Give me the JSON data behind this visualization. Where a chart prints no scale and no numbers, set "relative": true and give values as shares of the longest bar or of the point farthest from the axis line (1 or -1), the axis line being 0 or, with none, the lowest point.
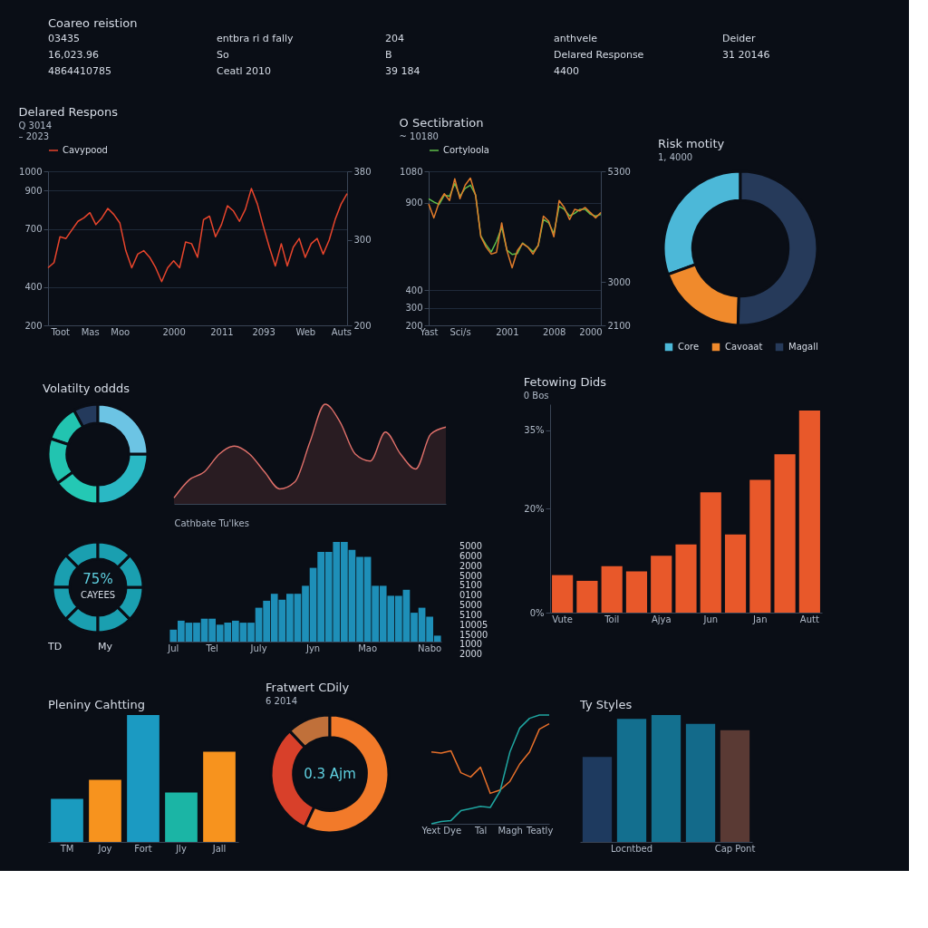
{
  "chart_data": [
    {
      "type": "other",
      "title": "Coareo reistion",
      "annotations": [
        "03435",
        "entbra ri d fally",
        "204",
        "anthvele",
        "Deider",
        "16,023.96",
        "So",
        "B",
        "Delared Response",
        "31 20146",
        "4864410785",
        "Ceatl 2010",
        "39 184",
        "4400"
      ]
    },
    {
      "type": "line",
      "title": "Delared Respons",
      "subtitle": "Q 3014",
      "annotations": [
        "– 2023"
      ],
      "legend": "top",
      "grid": "y",
      "categories": [
        null,
        null,
        "Toot",
        null,
        null,
        null,
        null,
        "Mas",
        null,
        null,
        null,
        null,
        "Moo",
        null,
        null,
        null,
        null,
        null,
        null,
        null,
        null,
        "2000",
        null,
        null,
        null,
        null,
        null,
        null,
        null,
        "2011",
        null,
        null,
        null,
        null,
        null,
        null,
        "2093",
        null,
        null,
        null,
        null,
        null,
        null,
        "Web",
        null,
        null,
        null,
        null,
        null,
        "Auts",
        null
      ],
      "ylim": [
        200,
        1000
      ],
      "yticks": [
        1000,
        900,
        700,
        400,
        200
      ],
      "y2lim": [
        200,
        380
      ],
      "y2ticks": [
        380,
        300,
        200
      ],
      "series": [
        {
          "name": "Cavypood",
          "color": "#e8452c",
          "values": [
            499,
            526,
            660,
            651,
            696,
            740,
            758,
            785,
            723,
            758,
            807,
            776,
            732,
            588,
            499,
            570,
            588,
            553,
            499,
            427,
            499,
            535,
            499,
            633,
            624,
            553,
            749,
            767,
            660,
            723,
            821,
            794,
            740,
            803,
            911,
            830,
            714,
            606,
            508,
            624,
            508,
            606,
            651,
            553,
            624,
            651,
            570,
            642,
            749,
            830,
            884
          ]
        }
      ]
    },
    {
      "type": "line",
      "title": "O Sectibration",
      "annotations": [
        "~ 10180"
      ],
      "legend": "top",
      "grid": "y",
      "categories": [
        "Yast",
        null,
        null,
        null,
        null,
        null,
        "Sci/s",
        null,
        null,
        null,
        null,
        null,
        null,
        null,
        null,
        "2001",
        null,
        null,
        null,
        null,
        null,
        null,
        null,
        null,
        "2008",
        null,
        null,
        null,
        null,
        null,
        null,
        "2000",
        null,
        null
      ],
      "ylim": [
        200,
        1080
      ],
      "yticks": [
        1080,
        900,
        400,
        300,
        200
      ],
      "y2lim": [
        2100,
        5300
      ],
      "y2ticks": [
        5300,
        3000,
        2100
      ],
      "series": [
        {
          "name": "Cortyloola",
          "color": "#5fbf4a",
          "values": [
            923,
            905,
            890,
            944,
            938,
            1010,
            938,
            982,
            1001,
            945,
            710,
            660,
            620,
            680,
            760,
            630,
            605,
            610,
            670,
            647,
            620,
            655,
            805,
            785,
            725,
            880,
            863,
            825,
            840,
            863,
            863,
            835,
            824,
            834
          ]
        },
        {
          "color": "#e07b2a",
          "values": [
            893,
            814,
            903,
            952,
            913,
            1037,
            923,
            1001,
            1041,
            942,
            706,
            647,
            607,
            617,
            785,
            627,
            529,
            627,
            667,
            647,
            607,
            657,
            824,
            795,
            706,
            913,
            873,
            804,
            863,
            854,
            873,
            844,
            814,
            844
          ]
        }
      ]
    },
    {
      "type": "donut",
      "title": "Risk motity",
      "subtitle": "1, 4000",
      "legend": "bottom",
      "categories": [
        "Core",
        "Cavoaat",
        "Magall"
      ],
      "values": [
        30.5,
        19,
        50.5
      ],
      "colors": [
        "#4cb8d8",
        "#f08a2c",
        "#263a5a"
      ]
    },
    {
      "type": "donut",
      "title": "Volatilty oddds",
      "categories": [
        null,
        null,
        null,
        null,
        null,
        null
      ],
      "values": [
        8,
        12,
        15,
        15,
        25,
        25
      ],
      "colors": [
        "#243a5c",
        "#22c4b0",
        "#22c4b0",
        "#24c8b4",
        "#2ab8c4",
        "#6cc4e4"
      ]
    },
    {
      "type": "area",
      "relative": true,
      "xlabel": "Cathbate Tu'lkes",
      "categories": [
        null,
        null,
        null,
        null,
        null,
        null,
        null,
        null,
        null,
        null,
        null,
        null,
        null,
        null,
        null,
        null,
        null,
        null,
        null
      ],
      "series": [
        {
          "color": "#e0706a",
          "values": [
            0.06,
            0.24,
            0.32,
            0.5,
            0.58,
            0.5,
            0.32,
            0.15,
            0.22,
            0.62,
            1,
            0.82,
            0.5,
            0.43,
            0.72,
            0.5,
            0.35,
            0.7,
            0.77
          ]
        }
      ]
    },
    {
      "type": "donut",
      "annotations": [
        "75%",
        "CAYEES"
      ],
      "categories": [
        null,
        null,
        null,
        null,
        null,
        null,
        null,
        null
      ],
      "values": [
        12.5,
        12.5,
        12.5,
        12.5,
        12.5,
        12.5,
        12.5,
        12.5
      ],
      "colors": [
        "#1a9fb0",
        "#1a9fb0",
        "#1a9fb0",
        "#1a9fb0",
        "#1a9fb0",
        "#1a9fb0",
        "#1a9fb0",
        "#1a9fb0"
      ]
    },
    {
      "type": "other",
      "annotations": [
        "TD",
        "My"
      ]
    },
    {
      "type": "bar",
      "relative": true,
      "color": "#1e8fb8",
      "categories": [
        "Jul",
        null,
        null,
        null,
        null,
        "Tel",
        null,
        null,
        null,
        null,
        null,
        "July",
        null,
        null,
        null,
        null,
        null,
        null,
        "Jyn",
        null,
        null,
        null,
        null,
        null,
        null,
        "Mao",
        null,
        null,
        null,
        null,
        null,
        null,
        null,
        "Nabo",
        null
      ],
      "values": [
        0.12,
        0.21,
        0.19,
        0.19,
        0.23,
        0.23,
        0.17,
        0.19,
        0.21,
        0.19,
        0.19,
        0.34,
        0.41,
        0.48,
        0.42,
        0.48,
        0.48,
        0.56,
        0.74,
        0.9,
        0.9,
        1,
        1,
        0.92,
        0.85,
        0.85,
        0.56,
        0.56,
        0.46,
        0.46,
        0.52,
        0.29,
        0.34,
        0.25,
        0.06
      ]
    },
    {
      "type": "other",
      "annotations": [
        "5000",
        "6000",
        "2000",
        "5000",
        "5100",
        "0100",
        "5000",
        "5100",
        "10005",
        "15000",
        "1000",
        "2000"
      ]
    },
    {
      "type": "bar",
      "title": "Fetowing Dids",
      "subtitle": "0 Bos",
      "color": "#e8582a",
      "ylim": [
        0,
        40
      ],
      "yticks": [
        {
          "value": 0,
          "label": "0%"
        },
        {
          "value": 20,
          "label": "20%"
        },
        {
          "value": 35,
          "label": "35%"
        }
      ],
      "categories": [
        "Vute",
        null,
        "Toil",
        null,
        "Ajya",
        null,
        "Jun",
        null,
        "Jan",
        null,
        "Autt"
      ],
      "values": [
        7.2,
        6.1,
        8.9,
        7.9,
        10.9,
        13.1,
        23.1,
        15.0,
        25.5,
        30.4,
        38.8
      ]
    },
    {
      "type": "bar",
      "title": "Pleniny Cahtting",
      "relative": true,
      "categories": [
        "TM",
        "Joy",
        "Fort",
        "Jly",
        "Jall"
      ],
      "values": [
        0.34,
        0.49,
        1,
        0.39,
        0.71
      ],
      "colors": [
        "#1a9bbf",
        "#f7931e",
        "#1b9ac2",
        "#1bb5a5",
        "#f7931e"
      ]
    },
    {
      "type": "donut",
      "title": "Fratwert CDily",
      "subtitle": "6 2014",
      "annotations": [
        "0.3 Ajm"
      ],
      "categories": [
        null,
        null,
        null
      ],
      "values": [
        12,
        31,
        57
      ],
      "colors": [
        "#c0703a",
        "#d8402a",
        "#f27a2a"
      ]
    },
    {
      "type": "line",
      "relative": true,
      "categories": [
        null,
        "Yext Dye",
        null,
        null,
        null,
        "Tal",
        null,
        null,
        "Magh",
        null,
        null,
        "Teatly",
        null
      ],
      "series": [
        {
          "color": "#e8702a",
          "values": [
            0.66,
            0.65,
            0.67,
            0.47,
            0.43,
            0.52,
            0.28,
            0.31,
            0.39,
            0.55,
            0.66,
            0.87,
            0.92
          ]
        },
        {
          "color": "#1fa5a0",
          "values": [
            0,
            0.02,
            0.03,
            0.12,
            0.14,
            0.16,
            0.15,
            0.3,
            0.66,
            0.88,
            0.97,
            1,
            1
          ]
        }
      ]
    },
    {
      "type": "bar",
      "title": "Ty Styles",
      "relative": true,
      "categories": [
        null,
        "Locntbed",
        null,
        null,
        "Cap Pont"
      ],
      "values": [
        0.67,
        0.97,
        1,
        0.93,
        0.88
      ],
      "colors": [
        "#1e3a5f",
        "#136f8f",
        "#13708f",
        "#136a8a",
        "#5a3a34"
      ]
    }
  ]
}
